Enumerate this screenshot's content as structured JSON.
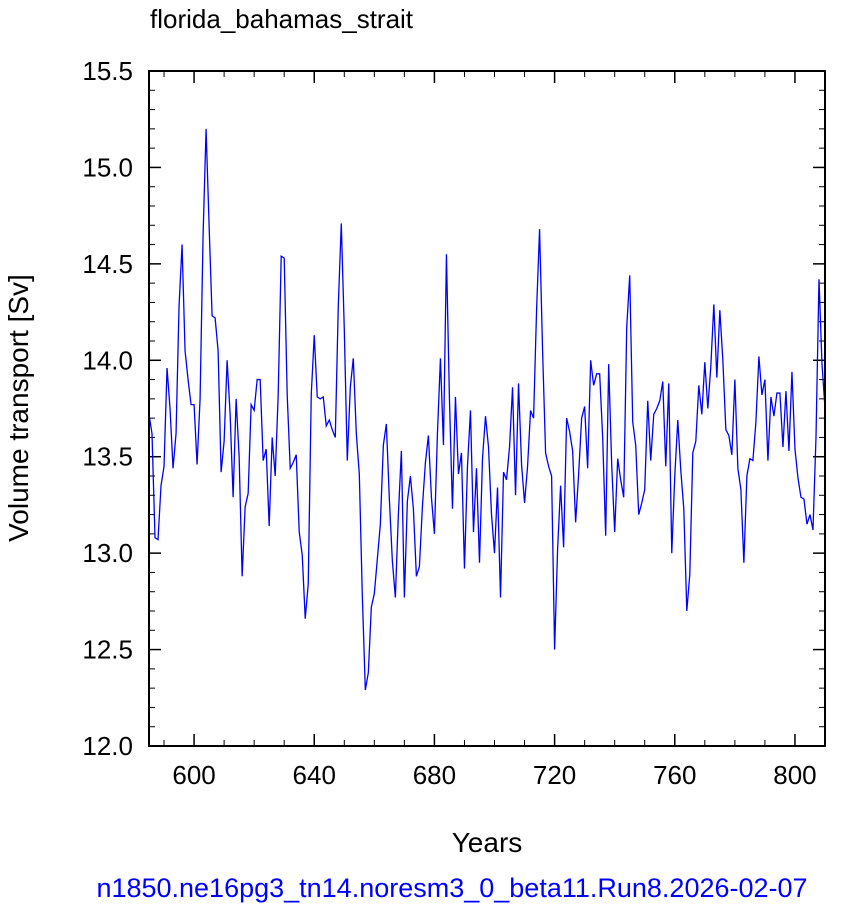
{
  "chart_data": {
    "type": "line",
    "title": "florida_bahamas_strait",
    "xlabel": "Years",
    "ylabel": "Volume transport [Sv]",
    "footer": "n1850.ne16pg3_tn14.noresm3_0_beta11.Run8.2026-02-07",
    "xlim": [
      585,
      810
    ],
    "ylim": [
      12.0,
      15.5
    ],
    "x_ticks": [
      "600",
      "640",
      "680",
      "720",
      "760",
      "800"
    ],
    "y_ticks": [
      "12.0",
      "12.5",
      "13.0",
      "13.5",
      "14.0",
      "14.5",
      "15.0",
      "15.5"
    ],
    "grid": false,
    "line_color": "#0000ff",
    "series": [
      {
        "x_start": 585,
        "values": [
          13.72,
          13.62,
          13.08,
          13.07,
          13.35,
          13.45,
          13.96,
          13.75,
          13.44,
          13.62,
          14.28,
          14.6,
          14.05,
          13.9,
          13.77,
          13.77,
          13.46,
          13.8,
          14.65,
          15.2,
          14.7,
          14.23,
          14.22,
          14.05,
          13.42,
          13.58,
          14.0,
          13.72,
          13.29,
          13.8,
          13.5,
          12.88,
          13.24,
          13.31,
          13.77,
          13.74,
          13.9,
          13.9,
          13.48,
          13.54,
          13.14,
          13.6,
          13.4,
          13.82,
          14.54,
          14.53,
          13.82,
          13.44,
          13.47,
          13.51,
          13.11,
          12.99,
          12.66,
          12.84,
          13.82,
          14.13,
          13.81,
          13.8,
          13.81,
          13.66,
          13.69,
          13.64,
          13.6,
          14.28,
          14.71,
          14.16,
          13.48,
          13.86,
          14.01,
          13.62,
          13.41,
          12.78,
          12.29,
          12.38,
          12.72,
          12.79,
          12.97,
          13.15,
          13.56,
          13.67,
          13.28,
          12.96,
          12.77,
          13.2,
          13.53,
          12.77,
          13.27,
          13.4,
          13.23,
          12.88,
          12.93,
          13.24,
          13.47,
          13.61,
          13.29,
          13.1,
          13.62,
          14.01,
          13.56,
          14.55,
          13.8,
          13.23,
          13.81,
          13.41,
          13.52,
          12.92,
          13.45,
          13.74,
          13.11,
          13.44,
          12.95,
          13.49,
          13.71,
          13.55,
          13.2,
          13.0,
          13.34,
          12.77,
          13.42,
          13.38,
          13.55,
          13.86,
          13.3,
          13.88,
          13.46,
          13.26,
          13.45,
          13.74,
          13.7,
          14.26,
          14.68,
          14.05,
          13.52,
          13.45,
          13.4,
          12.5,
          13.02,
          13.35,
          13.03,
          13.7,
          13.63,
          13.53,
          13.16,
          13.41,
          13.7,
          13.76,
          13.44,
          14.0,
          13.87,
          13.93,
          13.93,
          13.6,
          13.09,
          13.98,
          13.46,
          13.11,
          13.49,
          13.38,
          13.29,
          14.17,
          14.44,
          13.68,
          13.56,
          13.2,
          13.26,
          13.33,
          13.79,
          13.48,
          13.72,
          13.75,
          13.79,
          13.89,
          13.45,
          13.88,
          13.0,
          13.4,
          13.69,
          13.43,
          13.23,
          12.7,
          12.89,
          13.52,
          13.58,
          13.87,
          13.72,
          13.99,
          13.75,
          13.97,
          14.29,
          13.91,
          14.26,
          14.0,
          13.64,
          13.61,
          13.51,
          13.9,
          13.44,
          13.33,
          12.95,
          13.4,
          13.49,
          13.48,
          13.68,
          14.02,
          13.82,
          13.9,
          13.48,
          13.81,
          13.71,
          13.83,
          13.83,
          13.55,
          13.84,
          13.53,
          13.94,
          13.54,
          13.39,
          13.29,
          13.28,
          13.15,
          13.2,
          13.12,
          13.6,
          14.42,
          13.98,
          13.75
        ]
      }
    ]
  }
}
